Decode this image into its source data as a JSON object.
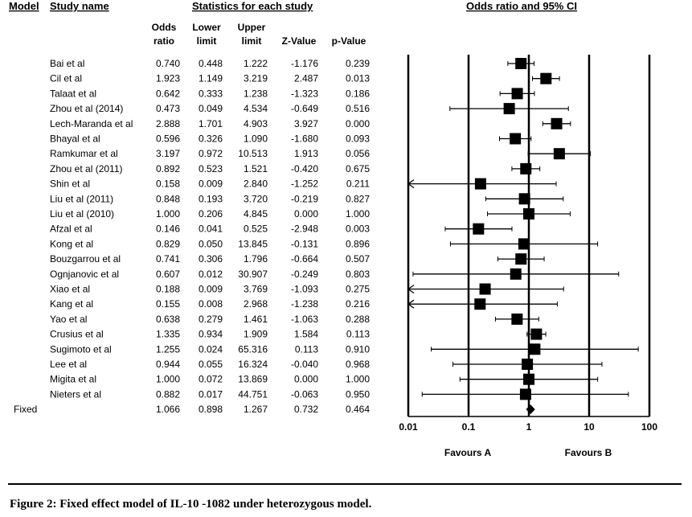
{
  "headers": {
    "model": "Model",
    "study_name": "Study name",
    "stats_group": "Statistics for each study",
    "plot_group": "Odds ratio and 95% CI",
    "odds_ratio_1": "Odds",
    "odds_ratio_2": "ratio",
    "lower_1": "Lower",
    "lower_2": "limit",
    "upper_1": "Upper",
    "upper_2": "limit",
    "zvalue": "Z-Value",
    "pvalue": "p-Value"
  },
  "favours_a": "Favours A",
  "favours_b": "Favours B",
  "caption": "Figure 2: Fixed effect model of IL-10 -1082 under heterozygous model.",
  "chart_data": {
    "type": "forest",
    "x_scale": "log",
    "xlim": [
      0.01,
      100
    ],
    "x_ticks": [
      0.01,
      0.1,
      1,
      10,
      100
    ],
    "x_tick_labels": [
      "0.01",
      "0.1",
      "1",
      "10",
      "100"
    ],
    "studies": [
      {
        "name": "Bai et al",
        "or": "0.740",
        "lower": "0.448",
        "upper": "1.222",
        "z": "-1.176",
        "p": "0.239"
      },
      {
        "name": "Cil et al",
        "or": "1.923",
        "lower": "1.149",
        "upper": "3.219",
        "z": "2.487",
        "p": "0.013"
      },
      {
        "name": "Talaat et al",
        "or": "0.642",
        "lower": "0.333",
        "upper": "1.238",
        "z": "-1.323",
        "p": "0.186"
      },
      {
        "name": "Zhou et al (2014)",
        "or": "0.473",
        "lower": "0.049",
        "upper": "4.534",
        "z": "-0.649",
        "p": "0.516"
      },
      {
        "name": "Lech-Maranda et al",
        "or": "2.888",
        "lower": "1.701",
        "upper": "4.903",
        "z": "3.927",
        "p": "0.000"
      },
      {
        "name": "Bhayal et al",
        "or": "0.596",
        "lower": "0.326",
        "upper": "1.090",
        "z": "-1.680",
        "p": "0.093"
      },
      {
        "name": "Ramkumar et al",
        "or": "3.197",
        "lower": "0.972",
        "upper": "10.513",
        "z": "1.913",
        "p": "0.056"
      },
      {
        "name": "Zhou et al (2011)",
        "or": "0.892",
        "lower": "0.523",
        "upper": "1.521",
        "z": "-0.420",
        "p": "0.675"
      },
      {
        "name": "Shin et al",
        "or": "0.158",
        "lower": "0.009",
        "upper": "2.840",
        "z": "-1.252",
        "p": "0.211"
      },
      {
        "name": "Liu et al (2011)",
        "or": "0.848",
        "lower": "0.193",
        "upper": "3.720",
        "z": "-0.219",
        "p": "0.827"
      },
      {
        "name": "Liu et al (2010)",
        "or": "1.000",
        "lower": "0.206",
        "upper": "4.845",
        "z": "0.000",
        "p": "1.000"
      },
      {
        "name": "Afzal et al",
        "or": "0.146",
        "lower": "0.041",
        "upper": "0.525",
        "z": "-2.948",
        "p": "0.003"
      },
      {
        "name": "Kong et al",
        "or": "0.829",
        "lower": "0.050",
        "upper": "13.845",
        "z": "-0.131",
        "p": "0.896"
      },
      {
        "name": "Bouzgarrou et al",
        "or": "0.741",
        "lower": "0.306",
        "upper": "1.796",
        "z": "-0.664",
        "p": "0.507"
      },
      {
        "name": "Ognjanovic et al",
        "or": "0.607",
        "lower": "0.012",
        "upper": "30.907",
        "z": "-0.249",
        "p": "0.803"
      },
      {
        "name": "Xiao et al",
        "or": "0.188",
        "lower": "0.009",
        "upper": "3.769",
        "z": "-1.093",
        "p": "0.275"
      },
      {
        "name": "Kang et al",
        "or": "0.155",
        "lower": "0.008",
        "upper": "2.968",
        "z": "-1.238",
        "p": "0.216"
      },
      {
        "name": "Yao et al",
        "or": "0.638",
        "lower": "0.279",
        "upper": "1.461",
        "z": "-1.063",
        "p": "0.288"
      },
      {
        "name": "Crusius et al",
        "or": "1.335",
        "lower": "0.934",
        "upper": "1.909",
        "z": "1.584",
        "p": "0.113"
      },
      {
        "name": "Sugimoto et al",
        "or": "1.255",
        "lower": "0.024",
        "upper": "65.316",
        "z": "0.113",
        "p": "0.910"
      },
      {
        "name": "Lee et al",
        "or": "0.944",
        "lower": "0.055",
        "upper": "16.324",
        "z": "-0.040",
        "p": "0.968"
      },
      {
        "name": "Migita et al",
        "or": "1.000",
        "lower": "0.072",
        "upper": "13.869",
        "z": "0.000",
        "p": "1.000"
      },
      {
        "name": "Nieters et al",
        "or": "0.882",
        "lower": "0.017",
        "upper": "44.751",
        "z": "-0.063",
        "p": "0.950"
      }
    ],
    "pooled": {
      "model": "Fixed",
      "or": "1.066",
      "lower": "0.898",
      "upper": "1.267",
      "z": "0.732",
      "p": "0.464"
    }
  }
}
